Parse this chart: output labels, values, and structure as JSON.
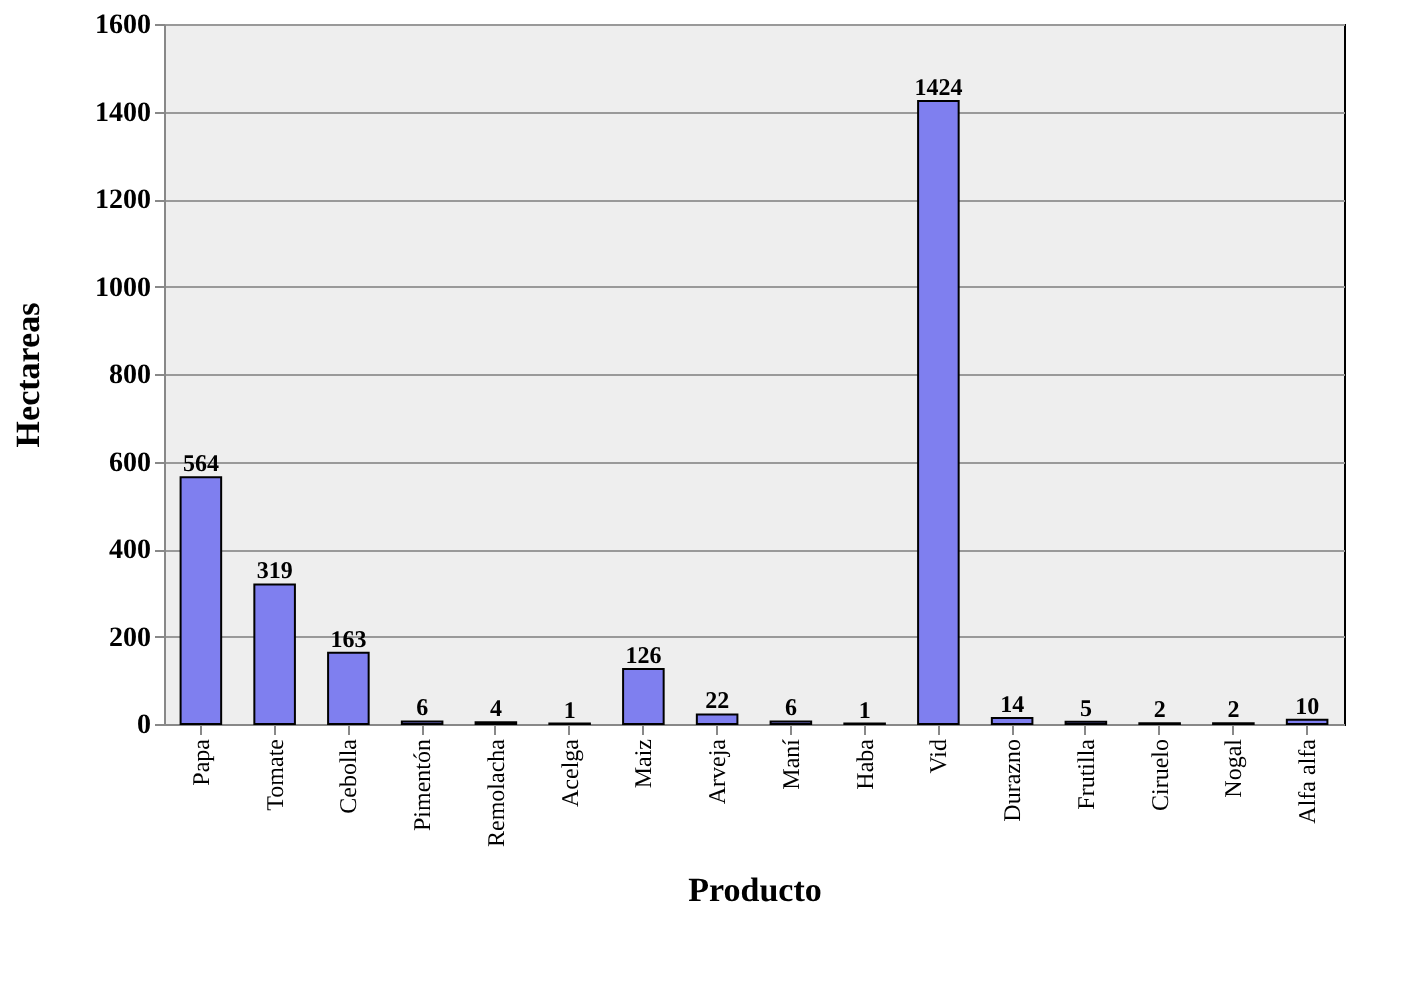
{
  "chart_data": {
    "type": "bar",
    "xlabel": "Producto",
    "ylabel": "Hectareas",
    "categories": [
      "Papa",
      "Tomate",
      "Cebolla",
      "Pimentón",
      "Remolacha",
      "Acelga",
      "Maiz",
      "Arveja",
      "Maní",
      "Haba",
      "Vid",
      "Durazno",
      "Frutilla",
      "Ciruelo",
      "Nogal",
      "Alfa alfa"
    ],
    "values": [
      564,
      319,
      163,
      6,
      4,
      1,
      126,
      22,
      6,
      1,
      1424,
      14,
      5,
      2,
      2,
      10
    ],
    "color": "#7f7fef",
    "ylim": [
      0,
      1600
    ],
    "yticks": [
      0,
      200,
      400,
      600,
      800,
      1000,
      1200,
      1400,
      1600
    ],
    "grid": "y",
    "data_labels": true
  }
}
